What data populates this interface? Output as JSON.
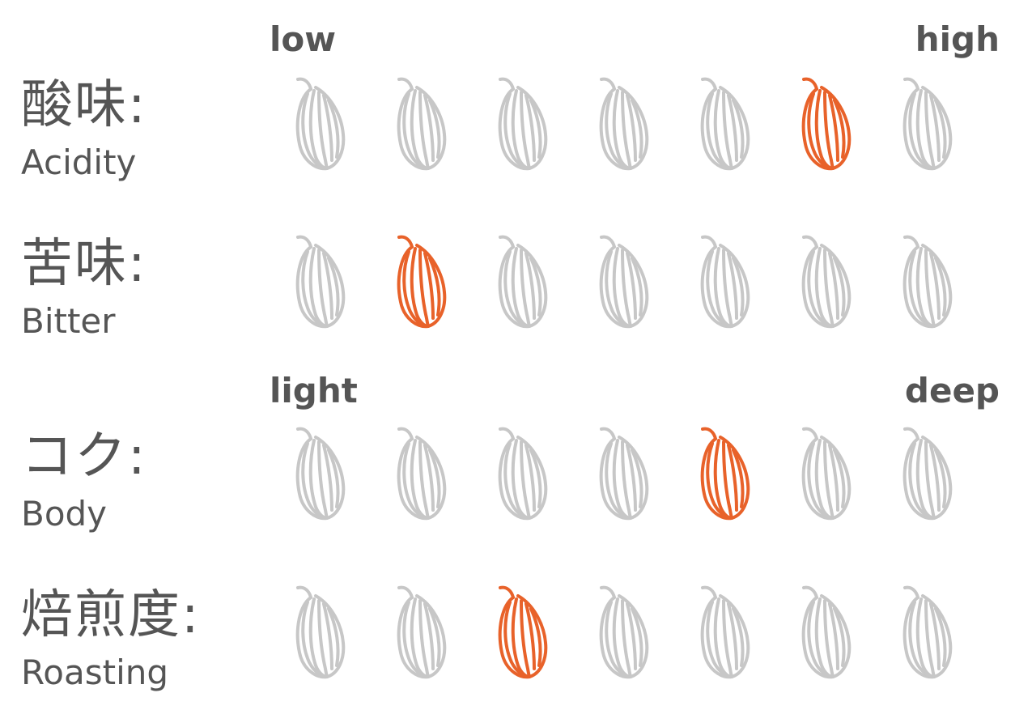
{
  "scales": {
    "taste": {
      "low": "low",
      "high": "high"
    },
    "body": {
      "low": "light",
      "high": "deep"
    }
  },
  "colors": {
    "active": "#e8622a",
    "inactive": "#c7c7c7",
    "text": "#555555"
  },
  "bean_icon": "coffee-bean-icon",
  "rows": [
    {
      "id": "acidity",
      "jp": "酸味:",
      "en": "Acidity",
      "level": 6,
      "max": 7
    },
    {
      "id": "bitter",
      "jp": "苦味:",
      "en": "Bitter",
      "level": 2,
      "max": 7
    },
    {
      "id": "body",
      "jp": "コク:",
      "en": "Body",
      "level": 5,
      "max": 7
    },
    {
      "id": "roasting",
      "jp": "焙煎度:",
      "en": "Roasting",
      "level": 3,
      "max": 7
    }
  ]
}
